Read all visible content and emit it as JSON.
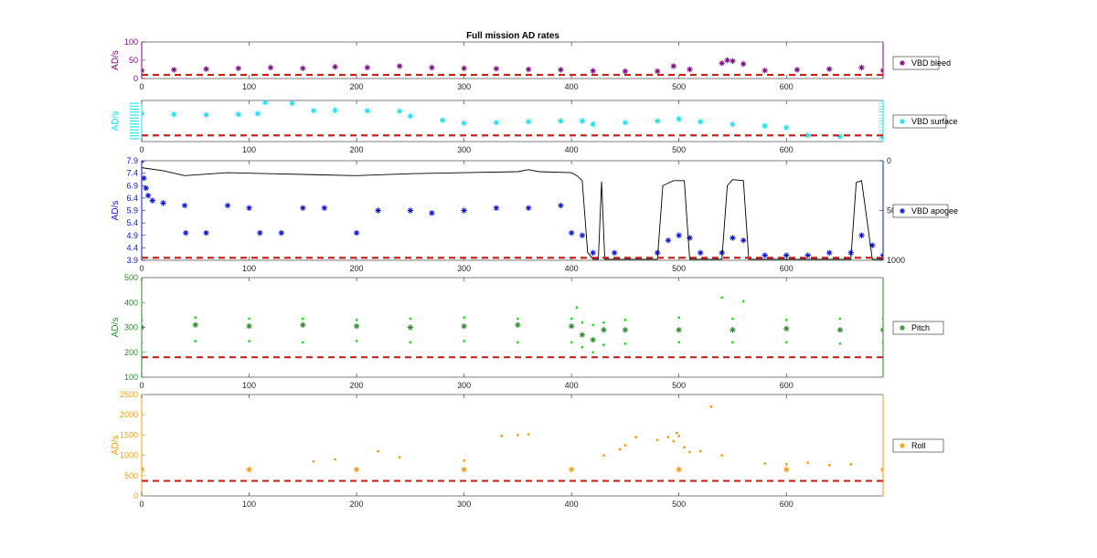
{
  "colors": {
    "bleed": "#7E0680",
    "surface": "#19E0F0",
    "apogee": "#0A14D9",
    "apogee_line": "#000000",
    "pitch_dark": "#2E8B2E",
    "pitch_light": "#22E022",
    "pitch_axis": "#2A8A2A",
    "roll": "#F39C12",
    "threshold": "#D0201B"
  },
  "chart_data": [
    {
      "type": "scatter",
      "id": "bleed",
      "title": "Full mission AD rates",
      "ylabel": "AD/s",
      "xlim": [
        0,
        690
      ],
      "ylim": [
        0,
        100
      ],
      "xticks": [
        0,
        100,
        200,
        300,
        400,
        500,
        600
      ],
      "yticks": [
        0,
        50,
        100
      ],
      "threshold": 10,
      "legend": "VBD bleed",
      "legend_loc": "right",
      "series": [
        {
          "marker": "star",
          "x": [
            0,
            30,
            60,
            90,
            120,
            150,
            180,
            210,
            240,
            270,
            300,
            330,
            360,
            390,
            420,
            450,
            480,
            495,
            510,
            540,
            545,
            550,
            560,
            580,
            610,
            640,
            670,
            690
          ],
          "y": [
            22,
            24,
            26,
            28,
            30,
            28,
            32,
            30,
            34,
            30,
            28,
            27,
            25,
            24,
            21,
            20,
            20,
            34,
            25,
            42,
            50,
            48,
            40,
            22,
            24,
            26,
            30,
            22
          ]
        }
      ]
    },
    {
      "type": "scatter",
      "id": "surface",
      "ylabel": "AD/s",
      "xlim": [
        0,
        690
      ],
      "ylim": [
        0,
        1
      ],
      "xticks": [
        0,
        100,
        200,
        300,
        400,
        500,
        600
      ],
      "threshold": 0.15,
      "legend": "VBD surface",
      "legend_loc": "right",
      "series": [
        {
          "marker": "star",
          "x": [
            0,
            30,
            60,
            90,
            108,
            115,
            140,
            160,
            180,
            210,
            240,
            250,
            280,
            300,
            330,
            360,
            390,
            410,
            420,
            450,
            480,
            500,
            520,
            550,
            580,
            600,
            620,
            650,
            690
          ],
          "y": [
            0.68,
            0.66,
            0.65,
            0.66,
            0.68,
            0.95,
            0.93,
            0.75,
            0.76,
            0.75,
            0.74,
            0.62,
            0.52,
            0.45,
            0.46,
            0.48,
            0.5,
            0.5,
            0.42,
            0.46,
            0.5,
            0.55,
            0.48,
            0.42,
            0.38,
            0.34,
            0.15,
            0.12,
            0.1
          ]
        }
      ]
    },
    {
      "type": "scatter",
      "id": "apogee",
      "ylabel": "AD/s",
      "xlim": [
        0,
        690
      ],
      "ylim": [
        3.9,
        7.9
      ],
      "xticks": [
        0,
        100,
        200,
        300,
        400,
        500,
        600
      ],
      "yticks": [
        3.9,
        4.4,
        4.9,
        5.4,
        5.9,
        6.4,
        6.9,
        7.4,
        7.9
      ],
      "yticks_right": [
        0,
        500,
        1000
      ],
      "ylim_right": [
        1000,
        0
      ],
      "threshold": 4.0,
      "legend": "VBD apogee",
      "legend_loc": "right",
      "series": [
        {
          "marker": "star",
          "x": [
            0,
            2,
            4,
            6,
            10,
            20,
            40,
            41,
            60,
            80,
            100,
            110,
            130,
            150,
            170,
            200,
            220,
            250,
            270,
            300,
            330,
            360,
            390,
            400,
            410,
            420,
            440,
            480,
            490,
            500,
            510,
            520,
            540,
            550,
            560,
            580,
            600,
            620,
            640,
            660,
            670,
            680,
            690
          ],
          "y": [
            7.9,
            7.2,
            6.8,
            6.5,
            6.3,
            6.2,
            6.1,
            5.0,
            5.0,
            6.1,
            6.0,
            5.0,
            5.0,
            6.0,
            6.0,
            5.0,
            5.9,
            5.9,
            5.8,
            5.9,
            6.0,
            6.0,
            6.1,
            5.0,
            4.9,
            4.2,
            4.2,
            4.2,
            4.7,
            4.9,
            4.8,
            4.2,
            4.2,
            4.8,
            4.7,
            4.1,
            4.1,
            4.1,
            4.2,
            4.2,
            4.9,
            4.5,
            4.1
          ]
        },
        {
          "type": "line",
          "axis": "right",
          "x": [
            0,
            20,
            40,
            80,
            120,
            160,
            200,
            250,
            300,
            350,
            360,
            370,
            400,
            405,
            410,
            415,
            420,
            425,
            428,
            431,
            434,
            440,
            470,
            480,
            485,
            495,
            505,
            510,
            515,
            540,
            545,
            550,
            560,
            565,
            570,
            600,
            650,
            660,
            665,
            670,
            680,
            685,
            690
          ],
          "y": [
            70,
            100,
            150,
            120,
            130,
            140,
            150,
            130,
            120,
            110,
            90,
            110,
            120,
            150,
            200,
            920,
            990,
            990,
            210,
            990,
            990,
            990,
            990,
            990,
            250,
            200,
            200,
            990,
            990,
            990,
            250,
            190,
            200,
            990,
            990,
            990,
            990,
            990,
            220,
            200,
            990,
            990,
            990
          ]
        }
      ]
    },
    {
      "type": "scatter",
      "id": "pitch",
      "ylabel": "AD/s",
      "xlim": [
        0,
        690
      ],
      "ylim": [
        100,
        500
      ],
      "xticks": [
        0,
        100,
        200,
        300,
        400,
        500,
        600
      ],
      "yticks": [
        100,
        200,
        300,
        400,
        500
      ],
      "threshold": 180,
      "legend": "Pitch",
      "legend_loc": "right",
      "series": [
        {
          "marker": "star",
          "x": [
            0,
            50,
            100,
            150,
            200,
            250,
            300,
            350,
            400,
            410,
            420,
            430,
            450,
            500,
            550,
            600,
            650,
            690
          ],
          "y": [
            300,
            310,
            305,
            310,
            305,
            300,
            305,
            310,
            305,
            270,
            250,
            290,
            290,
            290,
            290,
            295,
            290,
            290
          ]
        },
        {
          "marker": "dot",
          "x": [
            0,
            50,
            100,
            150,
            200,
            250,
            300,
            350,
            400,
            410,
            420,
            430,
            450,
            500,
            550,
            600,
            650,
            690
          ],
          "y": [
            330,
            340,
            335,
            335,
            330,
            335,
            340,
            335,
            335,
            320,
            310,
            320,
            330,
            340,
            335,
            330,
            335,
            335
          ]
        },
        {
          "marker": "dot",
          "x": [
            0,
            50,
            100,
            150,
            200,
            250,
            300,
            350,
            400,
            410,
            420,
            430,
            450,
            500,
            550,
            600,
            650,
            690
          ],
          "y": [
            240,
            245,
            245,
            240,
            245,
            240,
            245,
            240,
            240,
            220,
            200,
            230,
            235,
            240,
            240,
            240,
            235,
            240
          ]
        },
        {
          "marker": "dot",
          "x": [
            405,
            540,
            560
          ],
          "y": [
            380,
            420,
            405
          ]
        }
      ]
    },
    {
      "type": "scatter",
      "id": "roll",
      "ylabel": "AD/s",
      "xlim": [
        0,
        690
      ],
      "ylim": [
        0,
        2500
      ],
      "xticks": [
        0,
        100,
        200,
        300,
        400,
        500,
        600
      ],
      "yticks": [
        0,
        500,
        1000,
        1500,
        2000,
        2500
      ],
      "threshold": 370,
      "legend": "Roll",
      "legend_loc": "right",
      "series": [
        {
          "marker": "star",
          "x": [
            0,
            100,
            200,
            300,
            400,
            500,
            600,
            690
          ],
          "y": [
            650,
            650,
            650,
            650,
            650,
            650,
            650,
            650
          ]
        },
        {
          "marker": "dot",
          "x": [
            160,
            180,
            220,
            240,
            300,
            335,
            350,
            360,
            430,
            445,
            450,
            460,
            480,
            490,
            495,
            498,
            500,
            505,
            510,
            520,
            530,
            540,
            580,
            600,
            620,
            640,
            660
          ],
          "y": [
            850,
            900,
            1100,
            950,
            870,
            1480,
            1500,
            1520,
            1000,
            1150,
            1250,
            1450,
            1380,
            1450,
            1350,
            1550,
            1480,
            1200,
            1080,
            1100,
            2200,
            1000,
            800,
            780,
            820,
            760,
            780
          ]
        }
      ]
    }
  ]
}
